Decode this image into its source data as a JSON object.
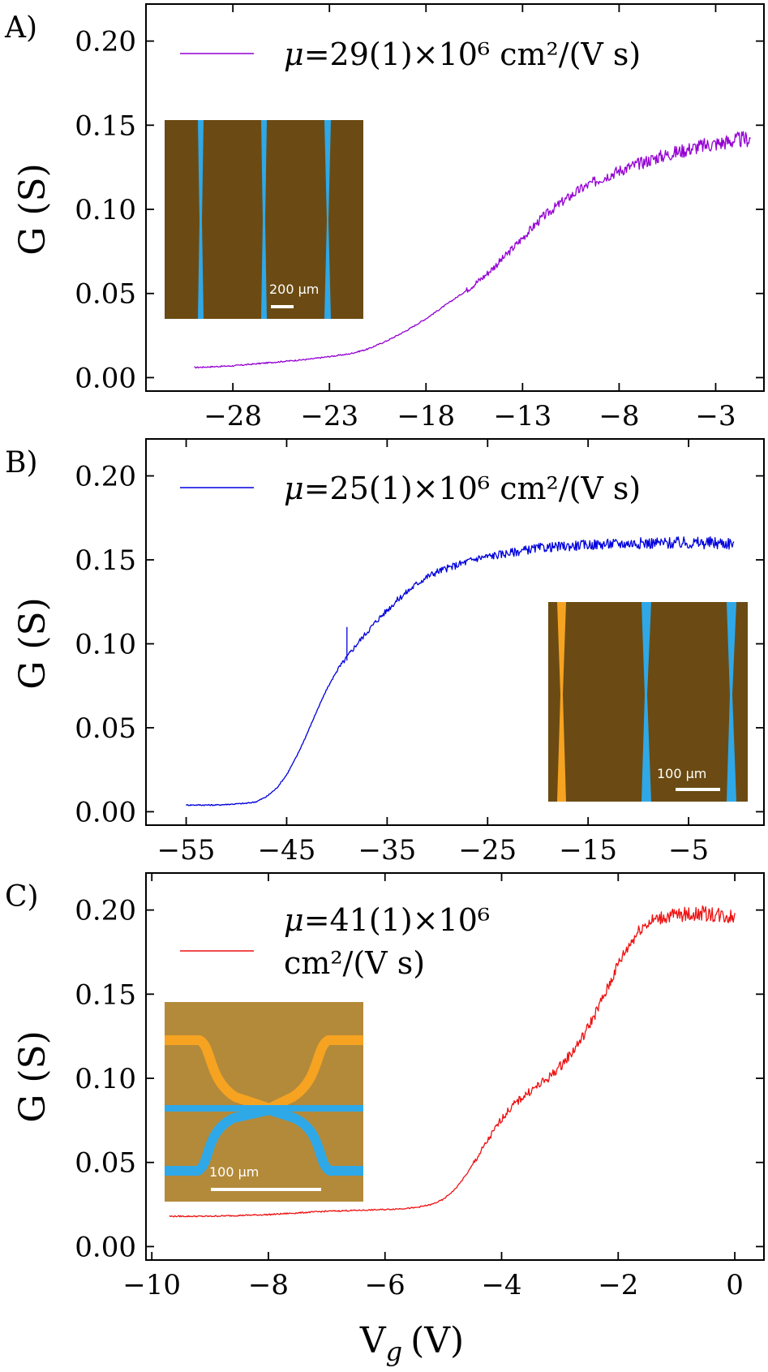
{
  "figure": {
    "ylabel": "G (S)",
    "xlabel_main": "V",
    "xlabel_sub": "g",
    "xlabel_unit": "(V)"
  },
  "chart_data": [
    {
      "type": "line",
      "panel_label": "A)",
      "color": "#9400d3",
      "legend_mu": "μ",
      "legend_text": "=29(1)×10⁶ cm²/(V s)",
      "xlim": [
        -32.5,
        -0.5
      ],
      "ylim": [
        -0.008,
        0.222
      ],
      "xticks": [
        -28,
        -23,
        -18,
        -13,
        -8,
        -3
      ],
      "xtick_labels": [
        "−28",
        "−23",
        "−18",
        "−13",
        "−8",
        "−3"
      ],
      "yticks": [
        0.0,
        0.05,
        0.1,
        0.15,
        0.2
      ],
      "ytick_labels": [
        "0.00",
        "0.05",
        "0.10",
        "0.15",
        "0.20"
      ],
      "x": [
        -30,
        -28,
        -26,
        -24,
        -22,
        -21,
        -20,
        -19,
        -18,
        -17,
        -16,
        -15,
        -14,
        -13,
        -12,
        -11,
        -10,
        -9,
        -8,
        -7,
        -6,
        -5,
        -4,
        -3,
        -2,
        -1.2
      ],
      "y": [
        0.006,
        0.007,
        0.009,
        0.011,
        0.014,
        0.017,
        0.022,
        0.028,
        0.035,
        0.043,
        0.051,
        0.06,
        0.071,
        0.083,
        0.095,
        0.104,
        0.112,
        0.118,
        0.123,
        0.127,
        0.131,
        0.134,
        0.137,
        0.139,
        0.141,
        0.142
      ],
      "noise_start_x": -16,
      "noise_amplitude": 0.005,
      "inset": {
        "kind": "hall-bar-wide",
        "scale_label": "200 μm",
        "corner": "left"
      }
    },
    {
      "type": "line",
      "panel_label": "B)",
      "color": "#0000dd",
      "legend_mu": "μ",
      "legend_text": "=25(1)×10⁶ cm²/(V s)",
      "xlim": [
        -59,
        2.5
      ],
      "ylim": [
        -0.008,
        0.222
      ],
      "xticks": [
        -55,
        -45,
        -35,
        -25,
        -15,
        -5
      ],
      "xtick_labels": [
        "−55",
        "−45",
        "−35",
        "−25",
        "−15",
        "−5"
      ],
      "yticks": [
        0.0,
        0.05,
        0.1,
        0.15,
        0.2
      ],
      "ytick_labels": [
        "0.00",
        "0.05",
        "0.10",
        "0.15",
        "0.20"
      ],
      "x": [
        -55,
        -52,
        -49,
        -48,
        -47,
        -46,
        -45,
        -44,
        -43,
        -42,
        -41,
        -40,
        -39,
        -38,
        -37,
        -36,
        -35,
        -34,
        -33,
        -32,
        -31,
        -30,
        -28,
        -26,
        -24,
        -22,
        -20,
        -15,
        -10,
        -5,
        -0.5
      ],
      "y": [
        0.004,
        0.004,
        0.005,
        0.006,
        0.009,
        0.014,
        0.022,
        0.033,
        0.046,
        0.06,
        0.073,
        0.084,
        0.092,
        0.1,
        0.107,
        0.114,
        0.12,
        0.126,
        0.131,
        0.136,
        0.14,
        0.143,
        0.147,
        0.151,
        0.153,
        0.155,
        0.157,
        0.159,
        0.16,
        0.16,
        0.16
      ],
      "noise_start_x": -40,
      "noise_amplitude": 0.004,
      "spike": {
        "x": -39,
        "y": 0.11
      },
      "inset": {
        "kind": "hall-bar-narrow",
        "scale_label": "100 μm",
        "corner": "right"
      }
    },
    {
      "type": "line",
      "panel_label": "C)",
      "color": "#ee1111",
      "legend_mu": "μ",
      "legend_line1": "=41(1)×10⁶",
      "legend_line2": "cm²/(V s)",
      "xlim": [
        -10.1,
        0.5
      ],
      "ylim": [
        -0.008,
        0.222
      ],
      "xticks": [
        -10,
        -8,
        -6,
        -4,
        -2,
        0
      ],
      "xtick_labels": [
        "−10",
        "−8",
        "−6",
        "−4",
        "−2",
        "0"
      ],
      "yticks": [
        0.0,
        0.05,
        0.1,
        0.15,
        0.2
      ],
      "ytick_labels": [
        "0.00",
        "0.05",
        "0.10",
        "0.15",
        "0.20"
      ],
      "x": [
        -9.7,
        -9,
        -8,
        -7,
        -6,
        -5.5,
        -5.2,
        -5,
        -4.8,
        -4.6,
        -4.4,
        -4.2,
        -4,
        -3.8,
        -3.6,
        -3.4,
        -3.2,
        -3,
        -2.8,
        -2.6,
        -2.4,
        -2.2,
        -2,
        -1.8,
        -1.6,
        -1.4,
        -1.2,
        -1,
        -0.5,
        0
      ],
      "y": [
        0.018,
        0.018,
        0.019,
        0.021,
        0.022,
        0.023,
        0.025,
        0.028,
        0.034,
        0.043,
        0.054,
        0.065,
        0.076,
        0.084,
        0.09,
        0.095,
        0.1,
        0.107,
        0.115,
        0.125,
        0.138,
        0.152,
        0.168,
        0.18,
        0.19,
        0.194,
        0.196,
        0.197,
        0.198,
        0.196
      ],
      "noise_start_x": -4.5,
      "noise_amplitude": 0.005,
      "inset": {
        "kind": "bow-tie",
        "scale_label": "100 μm",
        "corner": "left"
      }
    }
  ]
}
